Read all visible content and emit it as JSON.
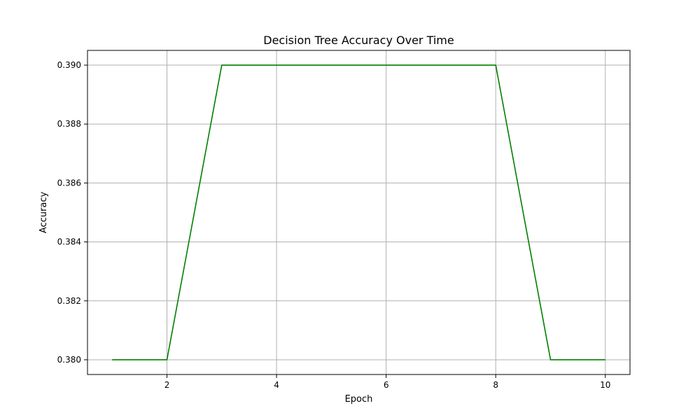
{
  "chart_data": {
    "type": "line",
    "title": "Decision Tree Accuracy Over Time",
    "xlabel": "Epoch",
    "ylabel": "Accuracy",
    "xlim": [
      0.55,
      10.45
    ],
    "ylim": [
      0.3795,
      0.3905
    ],
    "xticks": [
      2,
      4,
      6,
      8,
      10
    ],
    "xtick_labels": [
      "2",
      "4",
      "6",
      "8",
      "10"
    ],
    "yticks": [
      0.38,
      0.382,
      0.384,
      0.386,
      0.388,
      0.39
    ],
    "ytick_labels": [
      "0.380",
      "0.382",
      "0.384",
      "0.386",
      "0.388",
      "0.390"
    ],
    "grid": true,
    "series": [
      {
        "color": "#008000",
        "x": [
          1,
          2,
          3,
          4,
          5,
          6,
          7,
          8,
          9,
          10
        ],
        "y": [
          0.38,
          0.38,
          0.39,
          0.39,
          0.39,
          0.39,
          0.39,
          0.39,
          0.38,
          0.38
        ]
      }
    ]
  }
}
